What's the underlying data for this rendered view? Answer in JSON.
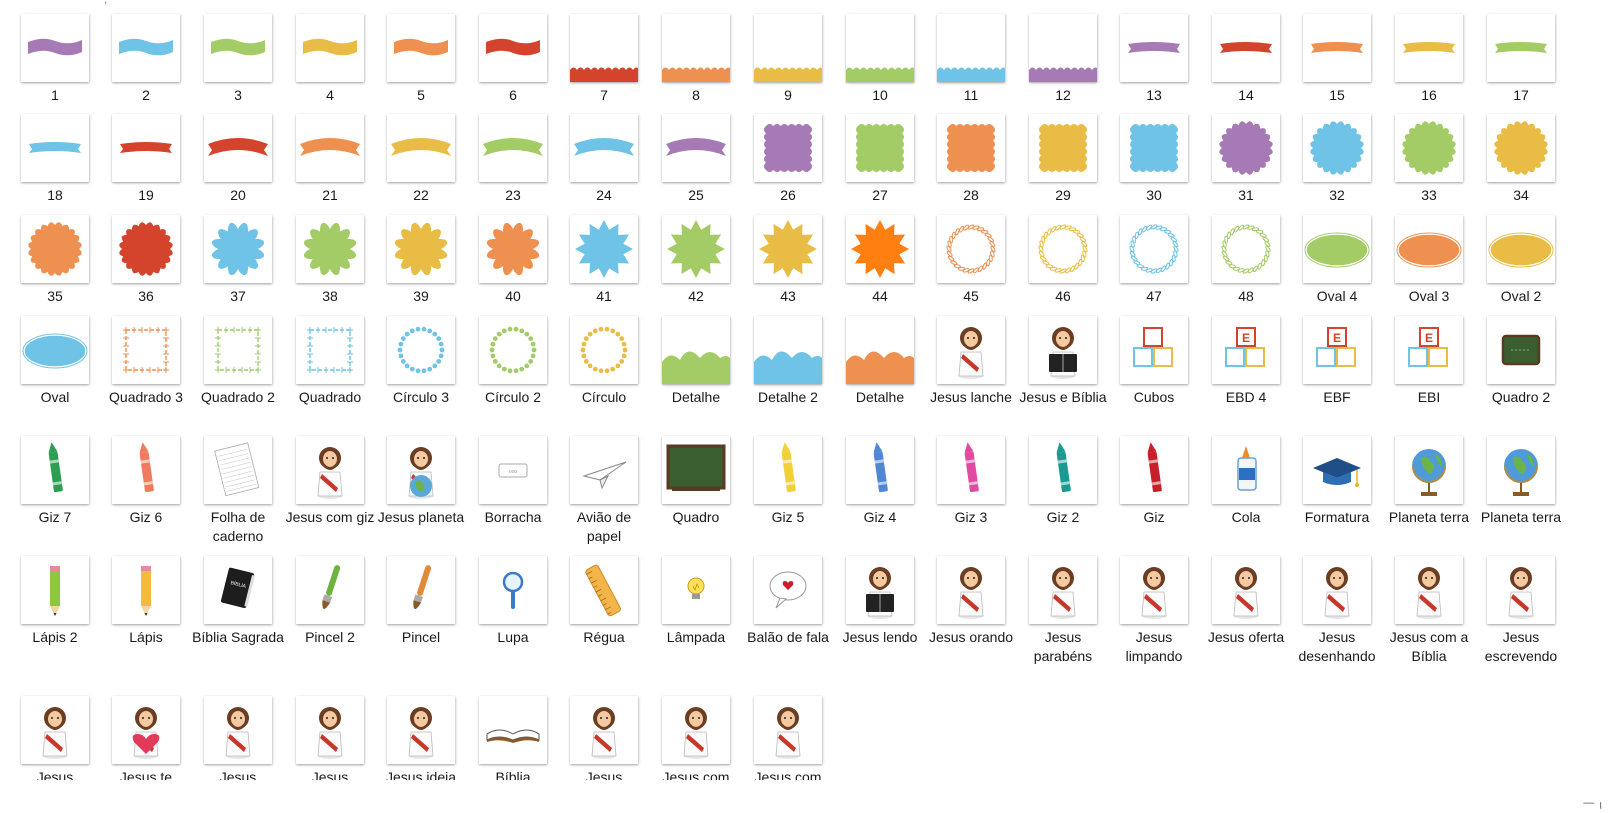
{
  "window": {
    "top_hint": ",",
    "corner_glyph": "— ╷"
  },
  "colors": {
    "purple": "#a67bb5",
    "blue": "#6ec3e6",
    "green": "#a4cc66",
    "yellow": "#e9bd45",
    "orange": "#ee9050",
    "red": "#d4432b",
    "brightorange": "#ff7f10",
    "darkgreen": "#3b5e2e"
  },
  "items": [
    {
      "label": "1",
      "icon": "ribbon-purple"
    },
    {
      "label": "2",
      "icon": "ribbon-blue"
    },
    {
      "label": "3",
      "icon": "ribbon-green"
    },
    {
      "label": "4",
      "icon": "ribbon-yellow"
    },
    {
      "label": "5",
      "icon": "ribbon-orange"
    },
    {
      "label": "6",
      "icon": "ribbon-red"
    },
    {
      "label": "7",
      "icon": "scallop-border-red"
    },
    {
      "label": "8",
      "icon": "scallop-border-orange"
    },
    {
      "label": "9",
      "icon": "scallop-border-yellow"
    },
    {
      "label": "10",
      "icon": "scallop-border-green"
    },
    {
      "label": "11",
      "icon": "scallop-border-blue"
    },
    {
      "label": "12",
      "icon": "scallop-border-purple"
    },
    {
      "label": "13",
      "icon": "thin-ribbon-purple"
    },
    {
      "label": "14",
      "icon": "thin-ribbon-red"
    },
    {
      "label": "15",
      "icon": "thin-ribbon-orange"
    },
    {
      "label": "16",
      "icon": "thin-ribbon-yellow"
    },
    {
      "label": "17",
      "icon": "thin-ribbon-green"
    },
    {
      "label": "18",
      "icon": "thin-ribbon-blue"
    },
    {
      "label": "19",
      "icon": "thin-ribbon-red"
    },
    {
      "label": "20",
      "icon": "arched-ribbon-red"
    },
    {
      "label": "21",
      "icon": "arched-ribbon-orange"
    },
    {
      "label": "22",
      "icon": "arched-ribbon-yellow"
    },
    {
      "label": "23",
      "icon": "arched-ribbon-green"
    },
    {
      "label": "24",
      "icon": "arched-ribbon-blue"
    },
    {
      "label": "25",
      "icon": "arched-ribbon-purple"
    },
    {
      "label": "26",
      "icon": "scalloped-square-purple"
    },
    {
      "label": "27",
      "icon": "scalloped-square-green"
    },
    {
      "label": "28",
      "icon": "scalloped-square-orange"
    },
    {
      "label": "29",
      "icon": "scalloped-square-yellow"
    },
    {
      "label": "30",
      "icon": "scalloped-square-blue"
    },
    {
      "label": "31",
      "icon": "scalloped-circle-purple"
    },
    {
      "label": "32",
      "icon": "scalloped-circle-blue"
    },
    {
      "label": "33",
      "icon": "scalloped-circle-green"
    },
    {
      "label": "34",
      "icon": "scalloped-circle-yellow"
    },
    {
      "label": "35",
      "icon": "scalloped-circle-orange"
    },
    {
      "label": "36",
      "icon": "scalloped-circle-red"
    },
    {
      "label": "37",
      "icon": "flower-blue"
    },
    {
      "label": "38",
      "icon": "flower-green"
    },
    {
      "label": "39",
      "icon": "flower-yellow"
    },
    {
      "label": "40",
      "icon": "flower-orange"
    },
    {
      "label": "41",
      "icon": "star-burst-blue"
    },
    {
      "label": "42",
      "icon": "star-burst-green"
    },
    {
      "label": "43",
      "icon": "star-burst-yellow"
    },
    {
      "label": "44",
      "icon": "star-burst-brightorange"
    },
    {
      "label": "45",
      "icon": "wreath-orange"
    },
    {
      "label": "46",
      "icon": "wreath-yellow"
    },
    {
      "label": "47",
      "icon": "wreath-blue"
    },
    {
      "label": "48",
      "icon": "wreath-green"
    },
    {
      "label": "Oval 4",
      "icon": "oval-green"
    },
    {
      "label": "Oval 3",
      "icon": "oval-orange"
    },
    {
      "label": "Oval 2",
      "icon": "oval-yellow"
    },
    {
      "label": "Oval",
      "icon": "oval-blue"
    },
    {
      "label": "Quadrado 3",
      "icon": "stitched-square-orange"
    },
    {
      "label": "Quadrado 2",
      "icon": "stitched-square-green"
    },
    {
      "label": "Quadrado",
      "icon": "stitched-square-blue"
    },
    {
      "label": "Círculo 3",
      "icon": "dotted-circle-blue"
    },
    {
      "label": "Círculo 2",
      "icon": "dotted-circle-green"
    },
    {
      "label": "Círculo",
      "icon": "dotted-circle-yellow"
    },
    {
      "label": "Detalhe",
      "icon": "cloud-border-green"
    },
    {
      "label": "Detalhe 2",
      "icon": "cloud-border-blue"
    },
    {
      "label": "Detalhe",
      "icon": "cloud-border-orange"
    },
    {
      "label": "Jesus lanche",
      "icon": "jesus-figure"
    },
    {
      "label": "Jesus e Bíblia",
      "icon": "jesus-bible-figure"
    },
    {
      "label": "Cubos",
      "icon": "cubes-icon"
    },
    {
      "label": "EBD 4",
      "icon": "letter-blocks"
    },
    {
      "label": "EBF",
      "icon": "letter-blocks"
    },
    {
      "label": "EBI",
      "icon": "letter-blocks"
    },
    {
      "label": "Quadro 2",
      "icon": "small-chalkboard"
    },
    {
      "label": "Giz 7",
      "icon": "crayon-green"
    },
    {
      "label": "Giz 6",
      "icon": "crayon-salmon"
    },
    {
      "label": "Folha de caderno",
      "icon": "notebook-sheet"
    },
    {
      "label": "Jesus com giz",
      "icon": "jesus-figure"
    },
    {
      "label": "Jesus planeta",
      "icon": "jesus-globe"
    },
    {
      "label": "Borracha",
      "icon": "eraser"
    },
    {
      "label": "Avião de papel",
      "icon": "paper-plane"
    },
    {
      "label": "Quadro",
      "icon": "chalkboard"
    },
    {
      "label": "Giz 5",
      "icon": "crayon-yellow"
    },
    {
      "label": "Giz 4",
      "icon": "crayon-blue"
    },
    {
      "label": "Giz 3",
      "icon": "crayon-pink"
    },
    {
      "label": "Giz 2",
      "icon": "crayon-teal"
    },
    {
      "label": "Giz",
      "icon": "crayon-red"
    },
    {
      "label": "Cola",
      "icon": "glue-bottle"
    },
    {
      "label": "Formatura",
      "icon": "graduation-cap"
    },
    {
      "label": "Planeta terra",
      "icon": "globe"
    },
    {
      "label": "Planeta terra",
      "icon": "globe"
    },
    {
      "label": "Lápis  2",
      "icon": "pencil-green"
    },
    {
      "label": "Lápis",
      "icon": "pencil-yellow"
    },
    {
      "label": "Bíblia Sagrada",
      "icon": "bible-book"
    },
    {
      "label": "Pincel 2",
      "icon": "brush-green"
    },
    {
      "label": "Pincel",
      "icon": "brush-orange"
    },
    {
      "label": "Lupa",
      "icon": "magnifier"
    },
    {
      "label": "Régua",
      "icon": "ruler"
    },
    {
      "label": "Lâmpada",
      "icon": "lightbulb"
    },
    {
      "label": "Balão de fala",
      "icon": "speech-bubble"
    },
    {
      "label": "Jesus lendo",
      "icon": "jesus-bible-figure"
    },
    {
      "label": "Jesus orando",
      "icon": "jesus-figure"
    },
    {
      "label": "Jesus parabéns",
      "icon": "jesus-figure"
    },
    {
      "label": "Jesus limpando",
      "icon": "jesus-figure"
    },
    {
      "label": "Jesus oferta",
      "icon": "jesus-figure"
    },
    {
      "label": "Jesus desenhando",
      "icon": "jesus-figure"
    },
    {
      "label": "Jesus com a Bíblia",
      "icon": "jesus-figure"
    },
    {
      "label": "Jesus escrevendo",
      "icon": "jesus-figure"
    },
    {
      "label": "Jesus",
      "icon": "jesus-figure"
    },
    {
      "label": "Jesus te",
      "icon": "jesus-heart"
    },
    {
      "label": "Jesus",
      "icon": "jesus-figure"
    },
    {
      "label": "Jesus",
      "icon": "jesus-figure"
    },
    {
      "label": "Jesus ideia",
      "icon": "jesus-figure"
    },
    {
      "label": "Bíblia",
      "icon": "open-book"
    },
    {
      "label": "Jesus",
      "icon": "jesus-figure"
    },
    {
      "label": "Jesus com",
      "icon": "jesus-figure"
    },
    {
      "label": "Jesus com",
      "icon": "jesus-figure"
    }
  ]
}
